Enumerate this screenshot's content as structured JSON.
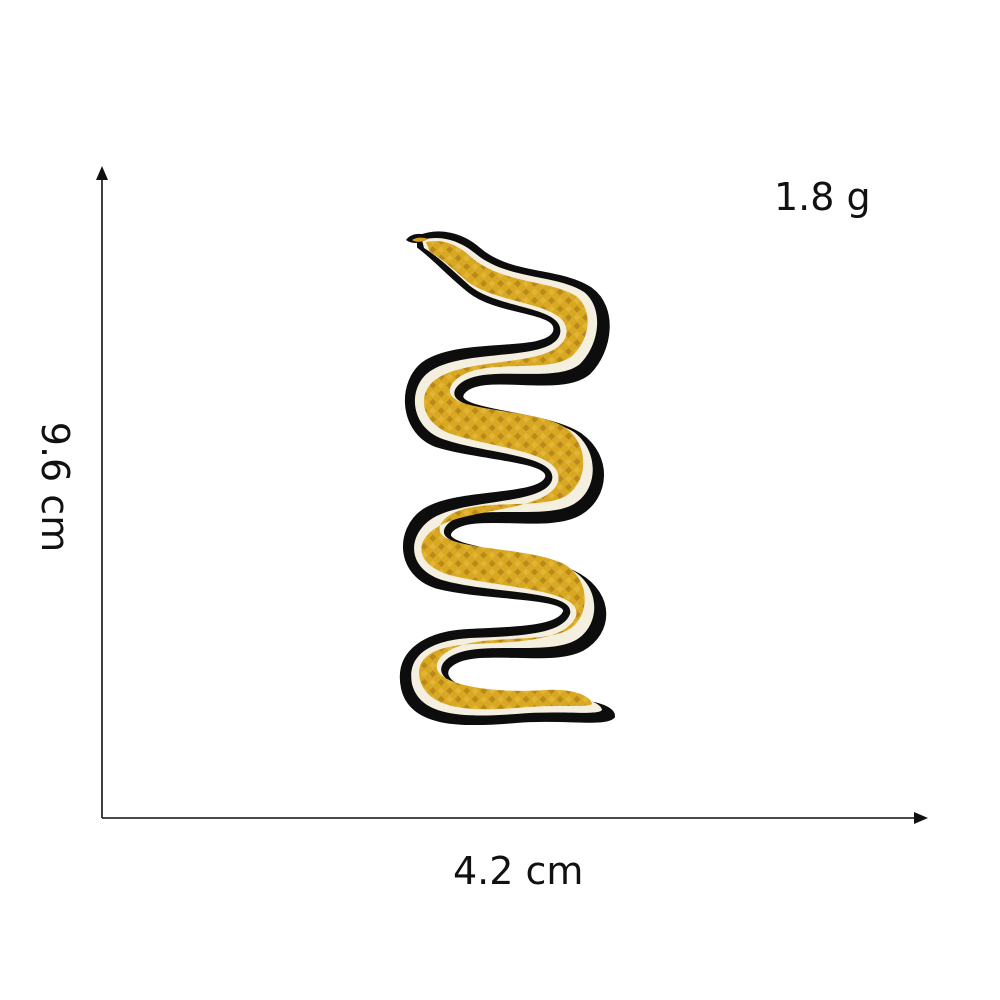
{
  "image": {
    "weight": "1.8 g",
    "width": "4.2 cm",
    "height": "9.6 cm"
  },
  "colors": {
    "background": "#ffffff",
    "axis": "#111111",
    "patch_gold": "#d4a21f",
    "patch_gold_dark": "#b4861a",
    "patch_border_white": "#f7f1e2",
    "patch_outline_black": "#0d0d0d"
  }
}
